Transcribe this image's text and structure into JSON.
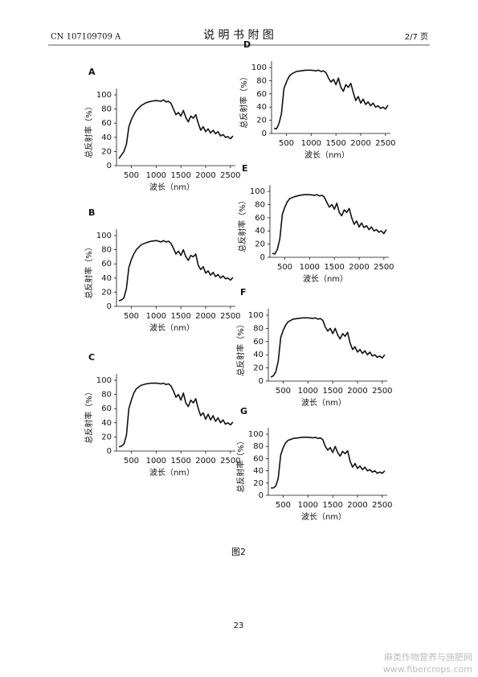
{
  "header": {
    "left": "CN 107109709 A",
    "center": "说 明 书 附 图",
    "right": "2/7 页"
  },
  "chart_data": [
    {
      "type": "line",
      "title": "A",
      "xlabel": "波长（nm）",
      "ylabel": "总反射率（%）",
      "color": "#111111",
      "x": [
        250,
        300,
        350,
        400,
        450,
        500,
        550,
        600,
        700,
        800,
        900,
        1000,
        1100,
        1150,
        1200,
        1250,
        1300,
        1350,
        1400,
        1450,
        1500,
        1550,
        1600,
        1650,
        1700,
        1750,
        1800,
        1850,
        1900,
        1950,
        2000,
        2050,
        2100,
        2150,
        2200,
        2250,
        2300,
        2350,
        2400,
        2450,
        2500,
        2550
      ],
      "values": [
        10,
        15,
        20,
        30,
        55,
        65,
        72,
        78,
        85,
        89,
        91,
        92,
        91,
        93,
        90,
        91,
        88,
        80,
        72,
        75,
        70,
        78,
        68,
        62,
        70,
        67,
        72,
        60,
        50,
        55,
        48,
        52,
        46,
        50,
        45,
        48,
        42,
        44,
        40,
        41,
        38,
        42
      ],
      "xlim": [
        200,
        2600
      ],
      "ylim": [
        0,
        100
      ],
      "xticks": [
        500,
        1000,
        1500,
        2000,
        2500
      ],
      "yticks": [
        0,
        20,
        40,
        60,
        80,
        100
      ]
    },
    {
      "type": "line",
      "title": "B",
      "xlabel": "波长（nm）",
      "ylabel": "总反射率（%）",
      "color": "#111111",
      "x": [
        250,
        300,
        350,
        400,
        450,
        500,
        550,
        600,
        700,
        800,
        900,
        1000,
        1100,
        1150,
        1200,
        1250,
        1300,
        1350,
        1400,
        1450,
        1500,
        1550,
        1600,
        1650,
        1700,
        1750,
        1800,
        1850,
        1900,
        1950,
        2000,
        2050,
        2100,
        2150,
        2200,
        2250,
        2300,
        2350,
        2400,
        2450,
        2500,
        2550
      ],
      "values": [
        8,
        9,
        12,
        25,
        55,
        66,
        74,
        80,
        87,
        90,
        92,
        93,
        91,
        93,
        91,
        92,
        89,
        82,
        74,
        78,
        72,
        80,
        70,
        65,
        72,
        70,
        74,
        58,
        52,
        56,
        47,
        50,
        44,
        48,
        42,
        45,
        40,
        43,
        39,
        40,
        37,
        41
      ],
      "xlim": [
        200,
        2600
      ],
      "ylim": [
        0,
        100
      ],
      "xticks": [
        500,
        1000,
        1500,
        2000,
        2500
      ],
      "yticks": [
        0,
        20,
        40,
        60,
        80,
        100
      ]
    },
    {
      "type": "line",
      "title": "C",
      "xlabel": "波长（nm）",
      "ylabel": "总反射率（%）",
      "color": "#111111",
      "x": [
        250,
        300,
        350,
        400,
        450,
        500,
        550,
        600,
        700,
        800,
        900,
        1000,
        1100,
        1150,
        1200,
        1250,
        1300,
        1350,
        1400,
        1450,
        1500,
        1550,
        1600,
        1650,
        1700,
        1750,
        1800,
        1850,
        1900,
        1950,
        2000,
        2050,
        2100,
        2150,
        2200,
        2250,
        2300,
        2350,
        2400,
        2450,
        2500,
        2550
      ],
      "values": [
        6,
        7,
        10,
        22,
        60,
        72,
        82,
        88,
        93,
        95,
        96,
        96,
        95,
        96,
        94,
        95,
        92,
        85,
        76,
        80,
        72,
        82,
        68,
        63,
        72,
        68,
        74,
        60,
        50,
        54,
        45,
        52,
        44,
        50,
        42,
        47,
        40,
        44,
        38,
        40,
        37,
        41
      ],
      "xlim": [
        200,
        2600
      ],
      "ylim": [
        0,
        100
      ],
      "xticks": [
        500,
        1000,
        1500,
        2000,
        2500
      ],
      "yticks": [
        0,
        20,
        40,
        60,
        80,
        100
      ]
    },
    {
      "type": "line",
      "title": "D",
      "xlabel": "波长（nm）",
      "ylabel": "总反射率（%）",
      "color": "#111111",
      "x": [
        250,
        300,
        350,
        400,
        450,
        500,
        550,
        600,
        700,
        800,
        900,
        1000,
        1100,
        1150,
        1200,
        1250,
        1300,
        1350,
        1400,
        1450,
        1500,
        1550,
        1600,
        1650,
        1700,
        1750,
        1800,
        1850,
        1900,
        1950,
        2000,
        2050,
        2100,
        2150,
        2200,
        2250,
        2300,
        2350,
        2400,
        2450,
        2500,
        2550
      ],
      "values": [
        8,
        7,
        15,
        30,
        68,
        78,
        86,
        90,
        94,
        95,
        96,
        96,
        95,
        96,
        94,
        95,
        92,
        84,
        78,
        82,
        74,
        84,
        70,
        64,
        74,
        70,
        76,
        62,
        50,
        56,
        46,
        52,
        44,
        48,
        42,
        46,
        40,
        42,
        38,
        40,
        37,
        43
      ],
      "xlim": [
        200,
        2600
      ],
      "ylim": [
        0,
        100
      ],
      "xticks": [
        500,
        1000,
        1500,
        2000,
        2500
      ],
      "yticks": [
        0,
        20,
        40,
        60,
        80,
        100
      ]
    },
    {
      "type": "line",
      "title": "E",
      "xlabel": "波长（nm）",
      "ylabel": "总反射率（%）",
      "color": "#111111",
      "x": [
        250,
        300,
        350,
        400,
        450,
        500,
        550,
        600,
        700,
        800,
        900,
        1000,
        1100,
        1150,
        1200,
        1250,
        1300,
        1350,
        1400,
        1450,
        1500,
        1550,
        1600,
        1650,
        1700,
        1750,
        1800,
        1850,
        1900,
        1950,
        2000,
        2050,
        2100,
        2150,
        2200,
        2250,
        2300,
        2350,
        2400,
        2450,
        2500,
        2550
      ],
      "values": [
        6,
        5,
        12,
        28,
        65,
        76,
        84,
        89,
        92,
        94,
        95,
        95,
        94,
        95,
        93,
        94,
        91,
        83,
        76,
        80,
        73,
        82,
        68,
        63,
        72,
        68,
        74,
        60,
        50,
        55,
        46,
        52,
        45,
        48,
        42,
        46,
        40,
        42,
        38,
        40,
        36,
        42
      ],
      "xlim": [
        200,
        2600
      ],
      "ylim": [
        0,
        100
      ],
      "xticks": [
        500,
        1000,
        1500,
        2000,
        2500
      ],
      "yticks": [
        0,
        20,
        40,
        60,
        80,
        100
      ]
    },
    {
      "type": "line",
      "title": "F",
      "xlabel": "波长（nm）",
      "ylabel": "总反射率（%）",
      "color": "#111111",
      "x": [
        250,
        300,
        350,
        400,
        450,
        500,
        550,
        600,
        700,
        800,
        900,
        1000,
        1100,
        1150,
        1200,
        1250,
        1300,
        1350,
        1400,
        1450,
        1500,
        1550,
        1600,
        1650,
        1700,
        1750,
        1800,
        1850,
        1900,
        1950,
        2000,
        2050,
        2100,
        2150,
        2200,
        2250,
        2300,
        2350,
        2400,
        2450,
        2500,
        2550
      ],
      "values": [
        6,
        8,
        14,
        30,
        66,
        77,
        85,
        90,
        94,
        95,
        96,
        96,
        95,
        96,
        94,
        95,
        92,
        82,
        76,
        80,
        72,
        80,
        70,
        64,
        72,
        68,
        74,
        58,
        48,
        52,
        44,
        48,
        42,
        46,
        40,
        44,
        38,
        40,
        36,
        38,
        35,
        40
      ],
      "xlim": [
        200,
        2600
      ],
      "ylim": [
        0,
        100
      ],
      "xticks": [
        500,
        1000,
        1500,
        2000,
        2500
      ],
      "yticks": [
        0,
        20,
        40,
        60,
        80,
        100
      ]
    },
    {
      "type": "line",
      "title": "G",
      "xlabel": "波长（nm）",
      "ylabel": "总反射率（%）",
      "color": "#111111",
      "x": [
        250,
        300,
        350,
        400,
        450,
        500,
        550,
        600,
        700,
        800,
        900,
        1000,
        1100,
        1150,
        1200,
        1250,
        1300,
        1350,
        1400,
        1450,
        1500,
        1550,
        1600,
        1650,
        1700,
        1750,
        1800,
        1850,
        1900,
        1950,
        2000,
        2050,
        2100,
        2150,
        2200,
        2250,
        2300,
        2350,
        2400,
        2450,
        2500,
        2550
      ],
      "values": [
        12,
        12,
        15,
        28,
        66,
        78,
        86,
        90,
        93,
        94,
        95,
        95,
        94,
        95,
        93,
        94,
        91,
        80,
        74,
        78,
        70,
        80,
        70,
        64,
        72,
        68,
        73,
        56,
        46,
        52,
        44,
        48,
        42,
        46,
        40,
        42,
        38,
        40,
        36,
        38,
        36,
        40
      ],
      "xlim": [
        200,
        2600
      ],
      "ylim": [
        0,
        100
      ],
      "xticks": [
        500,
        1000,
        1500,
        2000,
        2500
      ],
      "yticks": [
        0,
        20,
        40,
        60,
        80,
        100
      ]
    }
  ],
  "caption": "图2",
  "page_number": "23",
  "watermark": {
    "line1": "麻类作物营养与施肥网",
    "line2": "www.fibercrops.com"
  }
}
